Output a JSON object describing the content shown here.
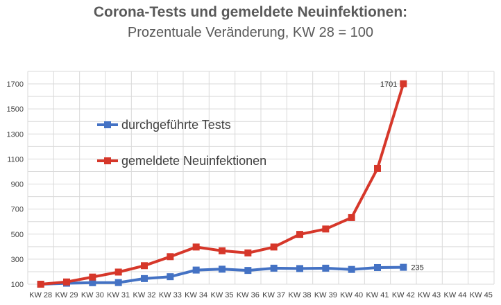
{
  "chart_data": {
    "type": "line",
    "title": "Corona-Tests und gemeldete Neuinfektionen:",
    "subtitle": "Prozentuale Veränderung, KW 28 = 100",
    "categories": [
      "KW 28",
      "KW 29",
      "KW 30",
      "KW 31",
      "KW 32",
      "KW 33",
      "KW 34",
      "KW 35",
      "KW 36",
      "KW 37",
      "KW 38",
      "KW 39",
      "KW 40",
      "KW 41",
      "KW 42",
      "KW 43",
      "KW 44",
      "KW 45"
    ],
    "ylim": [
      100,
      1800
    ],
    "yticks": [
      "100",
      "300",
      "500",
      "700",
      "900",
      "1100",
      "1300",
      "1500",
      "1700"
    ],
    "grid": true,
    "legend_position": "left-middle",
    "series": [
      {
        "name": "durchgeführte Tests",
        "color": "#4472C4",
        "values": [
          100,
          108,
          112,
          113,
          145,
          160,
          213,
          220,
          210,
          228,
          225,
          228,
          218,
          233,
          235,
          null,
          null,
          null
        ]
      },
      {
        "name": "gemeldete Neuinfektionen",
        "color": "#D6372A",
        "values": [
          100,
          118,
          157,
          197,
          248,
          320,
          397,
          367,
          350,
          397,
          498,
          541,
          632,
          1025,
          1701,
          null,
          null,
          null
        ]
      }
    ],
    "data_labels": [
      {
        "series": 1,
        "index": 14,
        "text": "1701",
        "side": "left"
      },
      {
        "series": 0,
        "index": 14,
        "text": "235",
        "side": "right"
      }
    ]
  }
}
